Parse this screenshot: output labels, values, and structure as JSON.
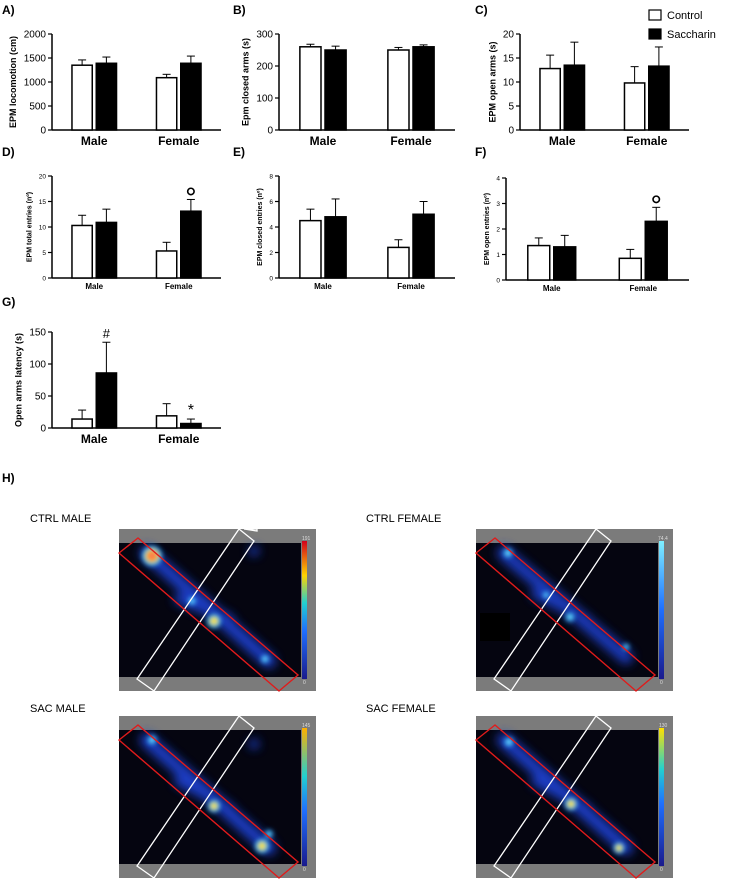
{
  "legend": {
    "items": [
      {
        "label": "Control",
        "fill": "#ffffff"
      },
      {
        "label": "Saccharin",
        "fill": "#000000"
      }
    ]
  },
  "heatmaps": {
    "panel_label": "H)",
    "maps": [
      {
        "label": "CTRL MALE",
        "scale_max": "191",
        "scale_min": "0"
      },
      {
        "label": "CTRL FEMALE",
        "scale_max": "74.4",
        "scale_min": "0"
      },
      {
        "label": "SAC MALE",
        "scale_max": "145",
        "scale_min": "0"
      },
      {
        "label": "SAC FEMALE",
        "scale_max": "130",
        "scale_min": "0"
      }
    ]
  },
  "chart_data": [
    {
      "panel": "A)",
      "type": "bar",
      "ylabel": "EPM locomotion (cm)",
      "categories": [
        "Male",
        "Female"
      ],
      "ylim": [
        0,
        2000
      ],
      "yticks": [
        0,
        500,
        1000,
        1500,
        2000
      ],
      "ytick_labels": [
        "0",
        "500",
        "1000",
        "1500",
        "2000"
      ],
      "series": [
        {
          "name": "Control",
          "values": [
            1350,
            1090
          ],
          "errors": [
            110,
            70
          ]
        },
        {
          "name": "Saccharin",
          "values": [
            1390,
            1390
          ],
          "errors": [
            130,
            150
          ]
        }
      ],
      "annotations": []
    },
    {
      "panel": "B)",
      "type": "bar",
      "ylabel": "Epm closed arms (s)",
      "categories": [
        "Male",
        "Female"
      ],
      "ylim": [
        0,
        300
      ],
      "yticks": [
        0,
        100,
        200,
        300
      ],
      "ytick_labels": [
        "0",
        "100",
        "200",
        "300"
      ],
      "series": [
        {
          "name": "Control",
          "values": [
            260,
            250
          ],
          "errors": [
            8,
            8
          ]
        },
        {
          "name": "Saccharin",
          "values": [
            250,
            260
          ],
          "errors": [
            12,
            6
          ]
        }
      ],
      "annotations": []
    },
    {
      "panel": "C)",
      "type": "bar",
      "ylabel": "EPM open arms (s)",
      "categories": [
        "Male",
        "Female"
      ],
      "ylim": [
        0,
        20
      ],
      "yticks": [
        0,
        5,
        10,
        15,
        20
      ],
      "ytick_labels": [
        "0",
        "5",
        "10",
        "15",
        "20"
      ],
      "series": [
        {
          "name": "Control",
          "values": [
            12.8,
            9.8
          ],
          "errors": [
            2.8,
            3.4
          ]
        },
        {
          "name": "Saccharin",
          "values": [
            13.5,
            13.3
          ],
          "errors": [
            4.8,
            4.0
          ]
        }
      ],
      "annotations": []
    },
    {
      "panel": "D)",
      "type": "bar",
      "ylabel": "EPM total entries (nº)",
      "categories": [
        "Male",
        "Female"
      ],
      "ylim": [
        0,
        20
      ],
      "yticks": [
        0,
        5,
        10,
        15,
        20
      ],
      "ytick_labels": [
        "0",
        "5",
        "10",
        "15",
        "20"
      ],
      "series": [
        {
          "name": "Control",
          "values": [
            10.3,
            5.3
          ],
          "errors": [
            2.0,
            1.7
          ]
        },
        {
          "name": "Saccharin",
          "values": [
            10.9,
            13.1
          ],
          "errors": [
            2.6,
            2.3
          ]
        }
      ],
      "annotations": [
        {
          "text": "o",
          "category": 1,
          "series": 1
        }
      ]
    },
    {
      "panel": "E)",
      "type": "bar",
      "ylabel": "EPM closed entries (nº)",
      "categories": [
        "Male",
        "Female"
      ],
      "ylim": [
        0,
        8
      ],
      "yticks": [
        0,
        2,
        4,
        6,
        8
      ],
      "ytick_labels": [
        "0",
        "2",
        "4",
        "6",
        "8"
      ],
      "series": [
        {
          "name": "Control",
          "values": [
            4.5,
            2.4
          ],
          "errors": [
            0.9,
            0.6
          ]
        },
        {
          "name": "Saccharin",
          "values": [
            4.8,
            5.0
          ],
          "errors": [
            1.4,
            1.0
          ]
        }
      ],
      "annotations": []
    },
    {
      "panel": "F)",
      "type": "bar",
      "ylabel": "EPM open entries (nº)",
      "categories": [
        "Male",
        "Female"
      ],
      "ylim": [
        0,
        4
      ],
      "yticks": [
        0,
        1,
        2,
        3,
        4
      ],
      "ytick_labels": [
        "0",
        "1",
        "2",
        "3",
        "4"
      ],
      "series": [
        {
          "name": "Control",
          "values": [
            1.35,
            0.85
          ],
          "errors": [
            0.3,
            0.35
          ]
        },
        {
          "name": "Saccharin",
          "values": [
            1.3,
            2.3
          ],
          "errors": [
            0.45,
            0.55
          ]
        }
      ],
      "annotations": [
        {
          "text": "o",
          "category": 1,
          "series": 1
        }
      ]
    },
    {
      "panel": "G)",
      "type": "bar",
      "ylabel": "Open arms latency (s)",
      "categories": [
        "Male",
        "Female"
      ],
      "ylim": [
        0,
        150
      ],
      "yticks": [
        0,
        50,
        100,
        150
      ],
      "ytick_labels": [
        "0",
        "50",
        "100",
        "150"
      ],
      "series": [
        {
          "name": "Control",
          "values": [
            14,
            19
          ],
          "errors": [
            14,
            19
          ]
        },
        {
          "name": "Saccharin",
          "values": [
            86,
            7
          ],
          "errors": [
            48,
            7
          ]
        }
      ],
      "annotations": [
        {
          "text": "#",
          "category": 0,
          "series": 1
        },
        {
          "text": "*",
          "category": 1,
          "series": 1
        }
      ]
    }
  ]
}
